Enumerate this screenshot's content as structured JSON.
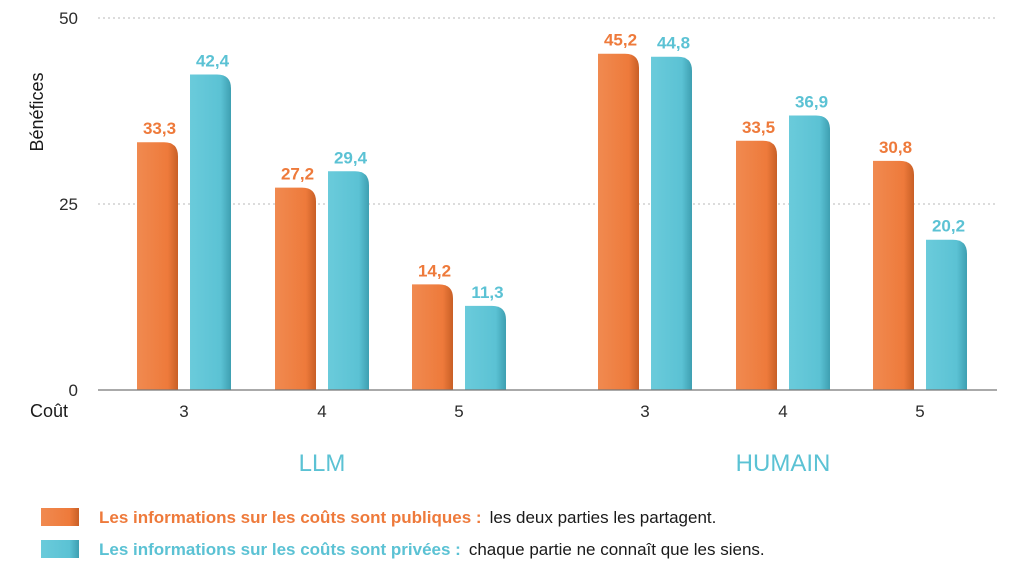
{
  "colors": {
    "public": "#EE7A3B",
    "private": "#5BC2D4",
    "grid": "#b9b9b9",
    "axis": "#777777"
  },
  "chart_data": {
    "type": "bar",
    "ylabel": "Bénéfices",
    "xlabel": "Coût",
    "ylim": [
      0,
      50
    ],
    "yticks": [
      "0",
      "25",
      "50"
    ],
    "groups": [
      {
        "label": "LLM",
        "categories": [
          "3",
          "4",
          "5"
        ]
      },
      {
        "label": "HUMAIN",
        "categories": [
          "3",
          "4",
          "5"
        ]
      }
    ],
    "series": [
      {
        "name": "Les informations sur les coûts sont publiques :",
        "description": "les deux parties les partagent.",
        "color": "#EE7A3B",
        "values": [
          33.3,
          27.2,
          14.2,
          45.2,
          33.5,
          30.8
        ],
        "labels": [
          "33,3",
          "27,2",
          "14,2",
          "45,2",
          "33,5",
          "30,8"
        ]
      },
      {
        "name": "Les informations sur les coûts sont privées :",
        "description": "chaque partie ne connaît que les siens.",
        "color": "#5BC2D4",
        "values": [
          42.4,
          29.4,
          11.3,
          44.8,
          36.9,
          20.2
        ],
        "labels": [
          "42,4",
          "29,4",
          "11,3",
          "44,8",
          "36,9",
          "20,2"
        ]
      }
    ],
    "grid": true,
    "legend": "bottom-left"
  }
}
